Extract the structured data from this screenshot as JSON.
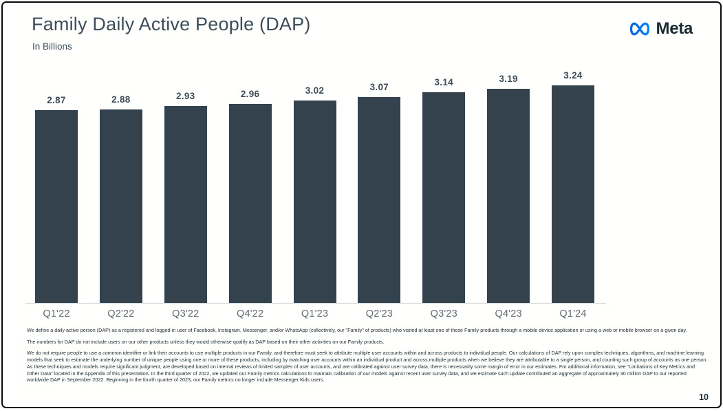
{
  "header": {
    "title": "Family Daily Active People (DAP)",
    "subtitle": "In Billions"
  },
  "logo": {
    "text": "Meta",
    "icon": "meta-infinity-icon"
  },
  "chart_data": {
    "type": "bar",
    "title": "Family Daily Active People (DAP)",
    "units": "In Billions",
    "categories": [
      "Q1'22",
      "Q2'22",
      "Q3'22",
      "Q4'22",
      "Q1'23",
      "Q2'23",
      "Q3'23",
      "Q4'23",
      "Q1'24"
    ],
    "values": [
      2.87,
      2.88,
      2.93,
      2.96,
      3.02,
      3.07,
      3.14,
      3.19,
      3.24
    ],
    "value_label_format": "2-decimals",
    "xlabel": "",
    "ylabel": "",
    "ylim": [
      0,
      3.24
    ],
    "grid": false,
    "legend": false,
    "baseline_axis": true
  },
  "colors": {
    "bar": "#34424d",
    "heading_text": "#3c4c59",
    "tick_text": "#5f6b75",
    "body_text": "#1c2b33",
    "axis_line": "#cfd4d8",
    "logo_blue_start": "#0064E0",
    "logo_blue_end": "#0082FB"
  },
  "footnotes": [
    "We define a daily active person (DAP) as a registered and logged-in user of Facebook, Instagram, Messenger, and/or WhatsApp (collectively, our \"Family\" of products) who visited at least one of these Family products through a mobile device application or using a web or mobile browser on a given day.",
    "The numbers for DAP do not include users on our other products unless they would otherwise qualify as DAP based on their other activities on our Family products.",
    "We do not require people to use a common identifier or link their accounts to use multiple products in our Family, and therefore must seek to attribute multiple user accounts within and across products to individual people. Our calculations of DAP rely upon complex techniques, algorithms, and machine learning models that seek to estimate the underlying number of unique people using one or more of these products, including by matching user accounts within an individual product and across multiple products when we believe they are attributable to a single person, and counting such group of accounts as one person. As these techniques and models require significant judgment, are developed based on internal reviews of limited samples of user accounts, and are calibrated against user survey data, there is necessarily some margin of error in our estimates. For additional information, see \"Limitations of Key Metrics and Other Data\" located in the Appendix of this presentation. In the third quarter of 2022, we updated our Family metrics calculations to maintain calibration of our models against recent user survey data, and we estimate such update contributed an aggregate of approximately 30 million DAP to our reported worldwide DAP in September 2022. Beginning in the fourth quarter of 2023, our Family metrics no longer include Messenger Kids users."
  ],
  "page_number": "10"
}
